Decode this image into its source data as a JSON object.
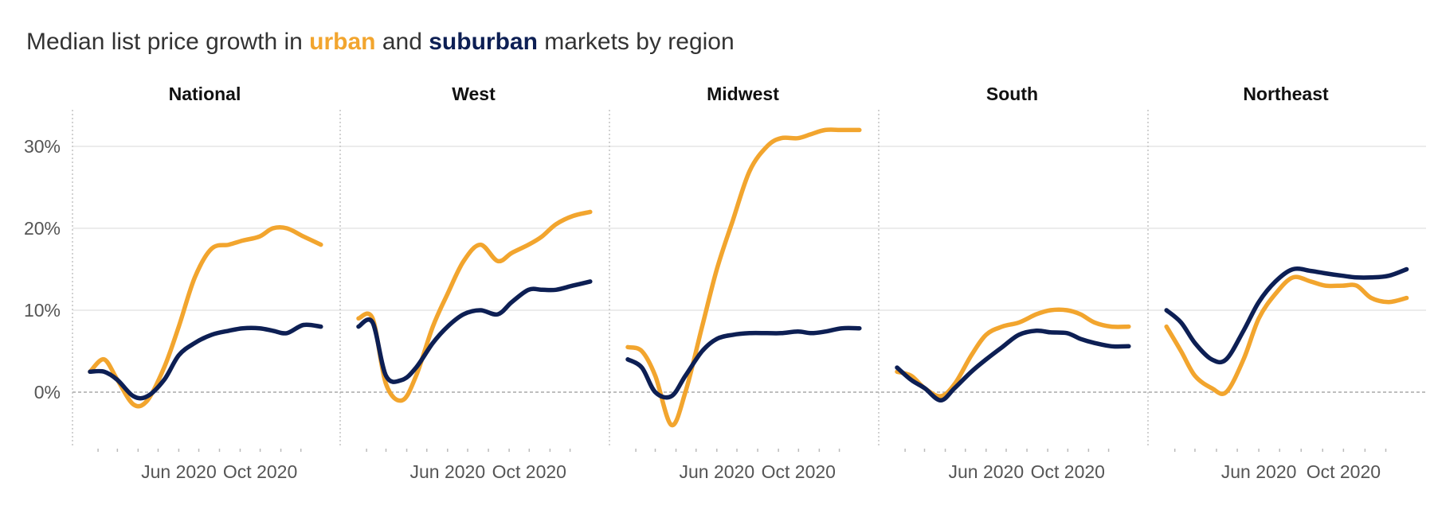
{
  "title": {
    "prefix": "Median list price growth in ",
    "urban": "urban",
    "middle": " and ",
    "suburban": "suburban",
    "suffix": " markets by region"
  },
  "colors": {
    "urban": "#f2a52e",
    "suburban": "#0d1f54",
    "grid": "#e6e6e6",
    "zero_line": "#a9a9a9",
    "divider": "#c4c4c4"
  },
  "chart_data": {
    "type": "line",
    "facets": [
      "National",
      "West",
      "Midwest",
      "South",
      "Northeast"
    ],
    "ylim": [
      -6,
      35
    ],
    "yticks": [
      0,
      10,
      20,
      30
    ],
    "ytick_labels": [
      "0%",
      "10%",
      "20%",
      "30%"
    ],
    "xlim": [
      "2020-01-14",
      "2021-01-05"
    ],
    "xtick_labels": [
      {
        "date": "2020-06-01",
        "label": "Jun 2020"
      },
      {
        "date": "2020-10-01",
        "label": "Oct 2020"
      }
    ],
    "x": [
      "2020-01-20",
      "2020-02-10",
      "2020-03-01",
      "2020-03-25",
      "2020-04-15",
      "2020-05-10",
      "2020-06-01",
      "2020-06-25",
      "2020-07-20",
      "2020-08-15",
      "2020-09-05",
      "2020-09-30",
      "2020-10-20",
      "2020-11-10",
      "2020-12-05",
      "2020-12-31"
    ],
    "panels": [
      {
        "region": "National",
        "series": [
          {
            "name": "urban",
            "values": [
              2.5,
              4.0,
              1.5,
              -1.5,
              -1.0,
              3.0,
              8.0,
              14.0,
              17.5,
              18.0,
              18.5,
              19.0,
              20.0,
              20.0,
              19.0,
              18.0
            ]
          },
          {
            "name": "suburban",
            "values": [
              2.5,
              2.5,
              1.5,
              -0.5,
              -0.5,
              1.5,
              4.5,
              6.0,
              7.0,
              7.5,
              7.8,
              7.8,
              7.5,
              7.2,
              8.2,
              8.0
            ]
          }
        ]
      },
      {
        "region": "West",
        "series": [
          {
            "name": "urban",
            "values": [
              9.0,
              9.0,
              1.0,
              -1.0,
              2.0,
              8.0,
              12.0,
              16.0,
              18.0,
              16.0,
              17.0,
              18.0,
              19.0,
              20.5,
              21.5,
              22.0
            ]
          },
          {
            "name": "suburban",
            "values": [
              8.0,
              8.5,
              2.0,
              1.5,
              3.0,
              6.0,
              8.0,
              9.5,
              10.0,
              9.5,
              11.0,
              12.5,
              12.5,
              12.5,
              13.0,
              13.5
            ]
          }
        ]
      },
      {
        "region": "Midwest",
        "series": [
          {
            "name": "urban",
            "values": [
              5.5,
              5.0,
              2.0,
              -4.0,
              0.0,
              8.0,
              15.0,
              21.0,
              27.0,
              30.0,
              31.0,
              31.0,
              31.5,
              32.0,
              32.0,
              32.0
            ]
          },
          {
            "name": "suburban",
            "values": [
              4.0,
              3.0,
              0.0,
              -0.5,
              2.0,
              5.0,
              6.5,
              7.0,
              7.2,
              7.2,
              7.2,
              7.4,
              7.2,
              7.4,
              7.8,
              7.8
            ]
          }
        ]
      },
      {
        "region": "South",
        "series": [
          {
            "name": "urban",
            "values": [
              2.5,
              2.0,
              0.5,
              -0.5,
              1.0,
              4.5,
              7.0,
              8.0,
              8.5,
              9.5,
              10.0,
              10.0,
              9.5,
              8.5,
              8.0,
              8.0
            ]
          },
          {
            "name": "suburban",
            "values": [
              3.0,
              1.5,
              0.5,
              -1.0,
              0.5,
              2.5,
              4.0,
              5.5,
              7.0,
              7.5,
              7.3,
              7.2,
              6.5,
              6.0,
              5.6,
              5.6
            ]
          }
        ]
      },
      {
        "region": "Northeast",
        "series": [
          {
            "name": "urban",
            "values": [
              8.0,
              5.0,
              2.0,
              0.5,
              0.0,
              4.0,
              9.0,
              12.0,
              14.0,
              13.5,
              13.0,
              13.0,
              13.0,
              11.5,
              11.0,
              11.5
            ]
          },
          {
            "name": "suburban",
            "values": [
              10.0,
              8.5,
              6.0,
              4.0,
              4.0,
              7.5,
              11.0,
              13.5,
              15.0,
              14.8,
              14.5,
              14.2,
              14.0,
              14.0,
              14.2,
              15.0
            ]
          }
        ]
      }
    ]
  }
}
